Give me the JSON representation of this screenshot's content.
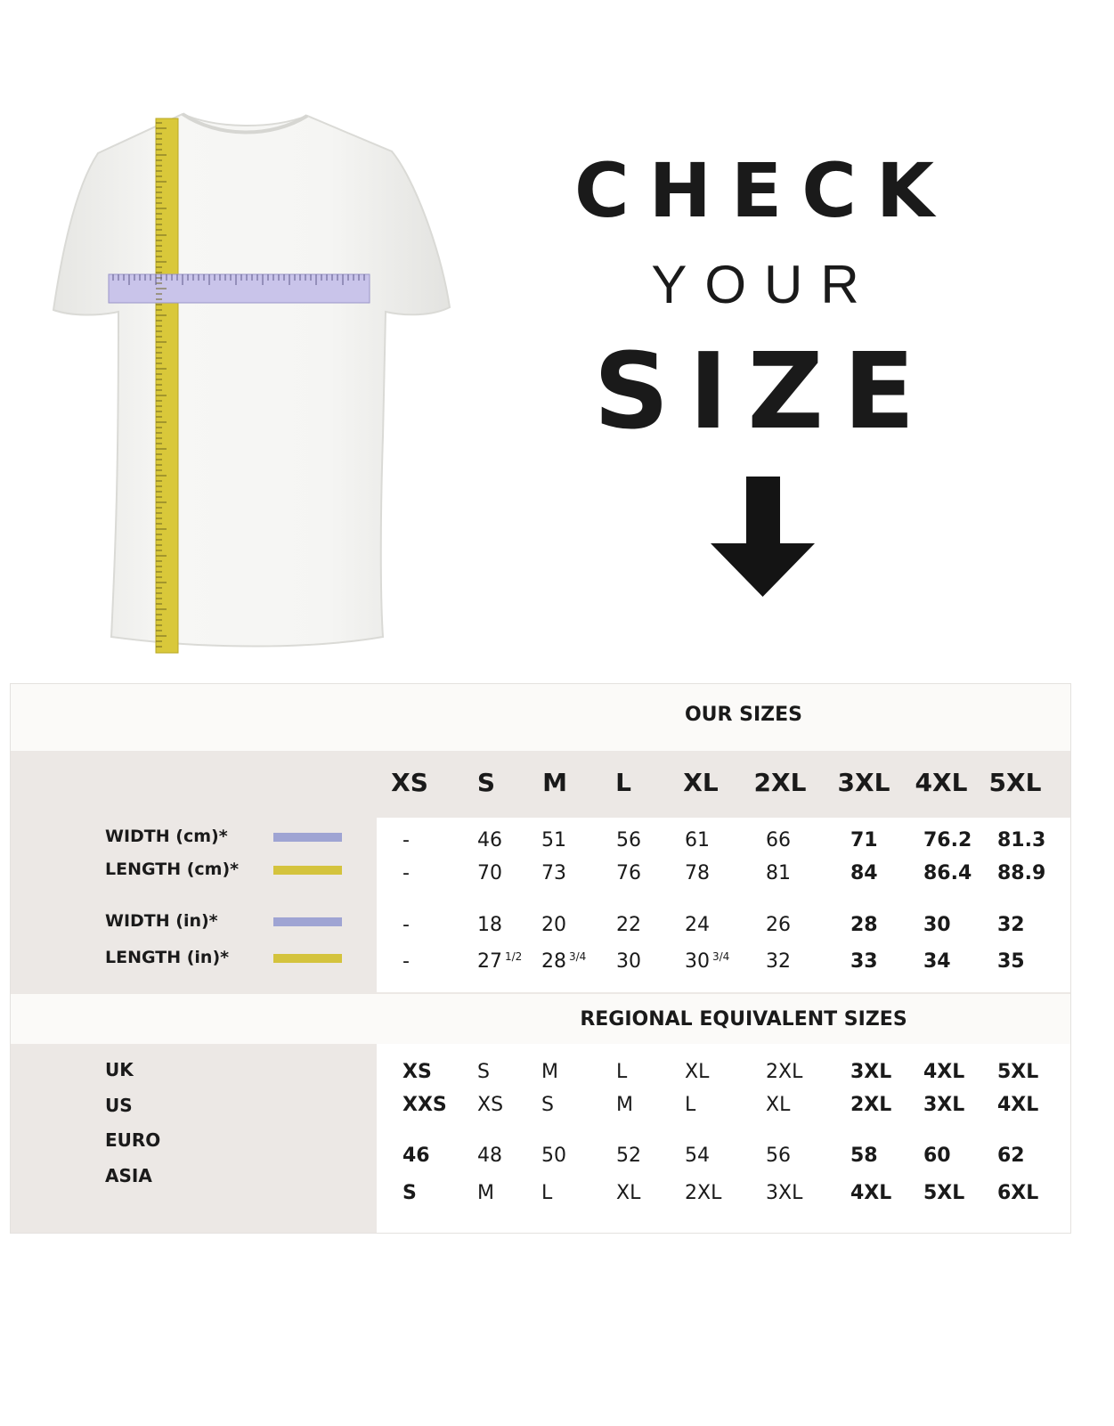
{
  "heading": {
    "line1": "CHECK",
    "line2": "YOUR",
    "line3": "SIZE"
  },
  "icons": {
    "arrow": "arrow-down-icon",
    "shirt": "t-shirt-with-measuring-tapes"
  },
  "colors": {
    "width_tape": "#a9a6dc",
    "length_tape": "#d9c83a",
    "width_swatch": "#9fa4d3",
    "length_swatch": "#d4c33d"
  },
  "our_sizes": {
    "title": "OUR SIZES",
    "sizes": [
      "XS",
      "S",
      "M",
      "L",
      "XL",
      "2XL",
      "3XL",
      "4XL",
      "5XL"
    ],
    "rows": [
      {
        "label": "WIDTH (cm)*",
        "swatch": "width",
        "values": [
          "-",
          "46",
          "51",
          "56",
          "61",
          "66",
          "71",
          "76.2",
          "81.3"
        ]
      },
      {
        "label": "LENGTH (cm)*",
        "swatch": "length",
        "values": [
          "-",
          "70",
          "73",
          "76",
          "78",
          "81",
          "84",
          "86.4",
          "88.9"
        ]
      },
      {
        "label": "WIDTH (in)*",
        "swatch": "width",
        "values": [
          "-",
          "18",
          "20",
          "22",
          "24",
          "26",
          "28",
          "30",
          "32"
        ]
      },
      {
        "label": "LENGTH (in)*",
        "swatch": "length",
        "values": [
          "-",
          "27",
          "28",
          "30",
          "30",
          "32",
          "33",
          "34",
          "35"
        ],
        "fractions": [
          "",
          "1/2",
          "3/4",
          "",
          "3/4",
          "",
          "",
          "",
          ""
        ]
      }
    ]
  },
  "regional": {
    "title": "REGIONAL EQUIVALENT SIZES",
    "labels": [
      "UK",
      "US",
      "EURO",
      "ASIA"
    ],
    "rows": [
      [
        "XS",
        "S",
        "M",
        "L",
        "XL",
        "2XL",
        "3XL",
        "4XL",
        "5XL"
      ],
      [
        "XXS",
        "XS",
        "S",
        "M",
        "L",
        "XL",
        "2XL",
        "3XL",
        "4XL"
      ],
      [
        "46",
        "48",
        "50",
        "52",
        "54",
        "56",
        "58",
        "60",
        "62"
      ],
      [
        "S",
        "M",
        "L",
        "XL",
        "2XL",
        "3XL",
        "4XL",
        "5XL",
        "6XL"
      ]
    ]
  }
}
